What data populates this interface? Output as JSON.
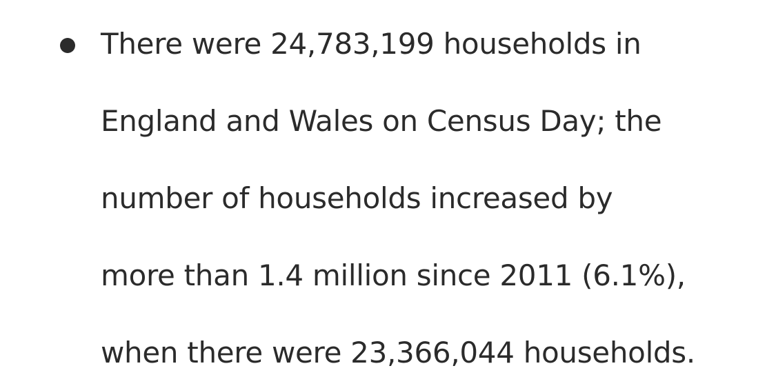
{
  "document": {
    "bullets": [
      {
        "lines": [
          "There were 24,783,199 households in",
          "England and Wales on Census Day; the",
          "number of households increased by",
          "more than 1.4 million since 2011 (6.1%),",
          "when there were 23,366,044 households."
        ]
      }
    ]
  }
}
